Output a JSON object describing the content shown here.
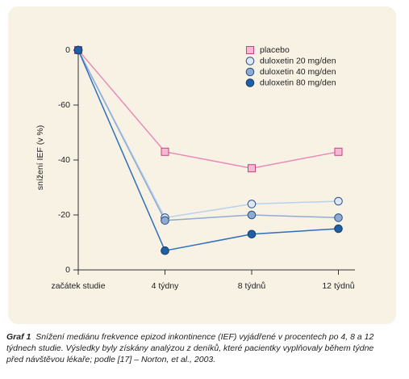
{
  "chart_data": {
    "type": "line",
    "y_label": "snížení IEF (v %)",
    "categories": [
      "začátek studie",
      "4 týdny",
      "8 týdnů",
      "12 týdnů"
    ],
    "ylim": [
      0,
      -80
    ],
    "yticks": [
      0,
      -20,
      -40,
      -60,
      {
        "value": -80,
        "label": "0"
      }
    ],
    "legend": "upper right",
    "series": [
      {
        "name": "placebo",
        "color": "#e98bb8",
        "marker": "square",
        "marker_fill": "#f5b9d5",
        "marker_edge": "#c2457f",
        "values": [
          -80,
          -43,
          -37,
          -43
        ]
      },
      {
        "name": "duloxetin 20 mg/den",
        "color": "#b8d2ec",
        "marker": "circle",
        "marker_fill": "#dbe8f6",
        "marker_edge": "#2b4f82",
        "values": [
          -80,
          -19,
          -24,
          -25
        ]
      },
      {
        "name": "duloxetin 40 mg/den",
        "color": "#90acd2",
        "marker": "circle",
        "marker_fill": "#8eaad3",
        "marker_edge": "#2b4f82",
        "values": [
          -80,
          -18,
          -20,
          -19
        ]
      },
      {
        "name": "duloxetin 80 mg/den",
        "color": "#2f6fb8",
        "marker": "circle",
        "marker_fill": "#1f5fa3",
        "marker_edge": "#163f70",
        "values": [
          -80,
          -7,
          -13,
          -15
        ]
      }
    ]
  },
  "caption": {
    "label": "Graf 1",
    "text": "Snížení mediánu frekvence epizod inkontinence (IEF) vyjádřené v procentech po 4, 8 a 12 týdnech studie. Výsledky byly získány analýzou z deníků, které pacientky vyplňovaly během týdne před návštěvou lékaře; podle [17] – Norton, et al., 2003."
  }
}
